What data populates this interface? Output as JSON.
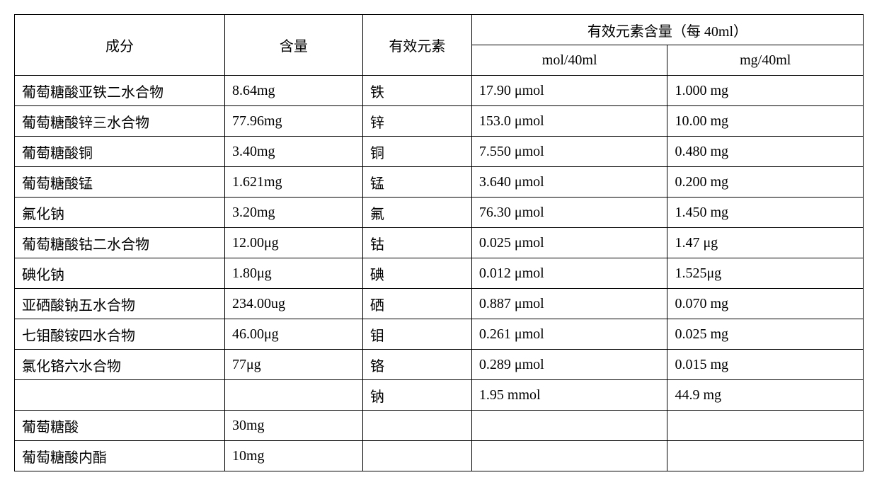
{
  "table": {
    "headers": {
      "ingredient": "成分",
      "content": "含量",
      "element": "有效元素",
      "effective_content": "有效元素含量（每 40ml）",
      "mol_unit": "mol/40ml",
      "mg_unit": "mg/40ml"
    },
    "rows": [
      {
        "ingredient": "葡萄糖酸亚铁二水合物",
        "content": "8.64mg",
        "element": "铁",
        "mol": "17.90 μmol",
        "mg": "1.000 mg"
      },
      {
        "ingredient": "葡萄糖酸锌三水合物",
        "content": "77.96mg",
        "element": "锌",
        "mol": "153.0 μmol",
        "mg": "10.00 mg"
      },
      {
        "ingredient": "葡萄糖酸铜",
        "content": "3.40mg",
        "element": "铜",
        "mol": "7.550 μmol",
        "mg": "0.480 mg"
      },
      {
        "ingredient": "葡萄糖酸锰",
        "content": "1.621mg",
        "element": "锰",
        "mol": "3.640 μmol",
        "mg": "0.200 mg"
      },
      {
        "ingredient": "氟化钠",
        "content": "3.20mg",
        "element": "氟",
        "mol": "76.30 μmol",
        "mg": "1.450 mg"
      },
      {
        "ingredient": "葡萄糖酸钴二水合物",
        "content": "12.00μg",
        "element": "钴",
        "mol": "0.025 μmol",
        "mg": "1.47 μg"
      },
      {
        "ingredient": "碘化钠",
        "content": "1.80μg",
        "element": "碘",
        "mol": "0.012 μmol",
        "mg": "1.525μg"
      },
      {
        "ingredient": "亚硒酸钠五水合物",
        "content": "234.00ug",
        "element": "硒",
        "mol": "0.887 μmol",
        "mg": "0.070 mg"
      },
      {
        "ingredient": "七钼酸铵四水合物",
        "content": "46.00μg",
        "element": "钼",
        "mol": "0.261 μmol",
        "mg": "0.025 mg"
      },
      {
        "ingredient": "氯化铬六水合物",
        "content": "77μg",
        "element": "铬",
        "mol": "0.289 μmol",
        "mg": "0.015 mg"
      },
      {
        "ingredient": "",
        "content": "",
        "element": "钠",
        "mol": "1.95 mmol",
        "mg": "44.9 mg"
      },
      {
        "ingredient": "葡萄糖酸",
        "content": "30mg",
        "element": "",
        "mol": "",
        "mg": ""
      },
      {
        "ingredient": "葡萄糖酸内酯",
        "content": "10mg",
        "element": "",
        "mol": "",
        "mg": ""
      }
    ],
    "styling": {
      "border_color": "#000000",
      "border_width": 1.5,
      "background_color": "#ffffff",
      "font_family": "SimSun",
      "font_size": 20,
      "cell_padding": "6px 10px",
      "column_widths": {
        "ingredient": 270,
        "content": 170,
        "element": 130,
        "mol": 250,
        "mg": 250
      }
    }
  }
}
